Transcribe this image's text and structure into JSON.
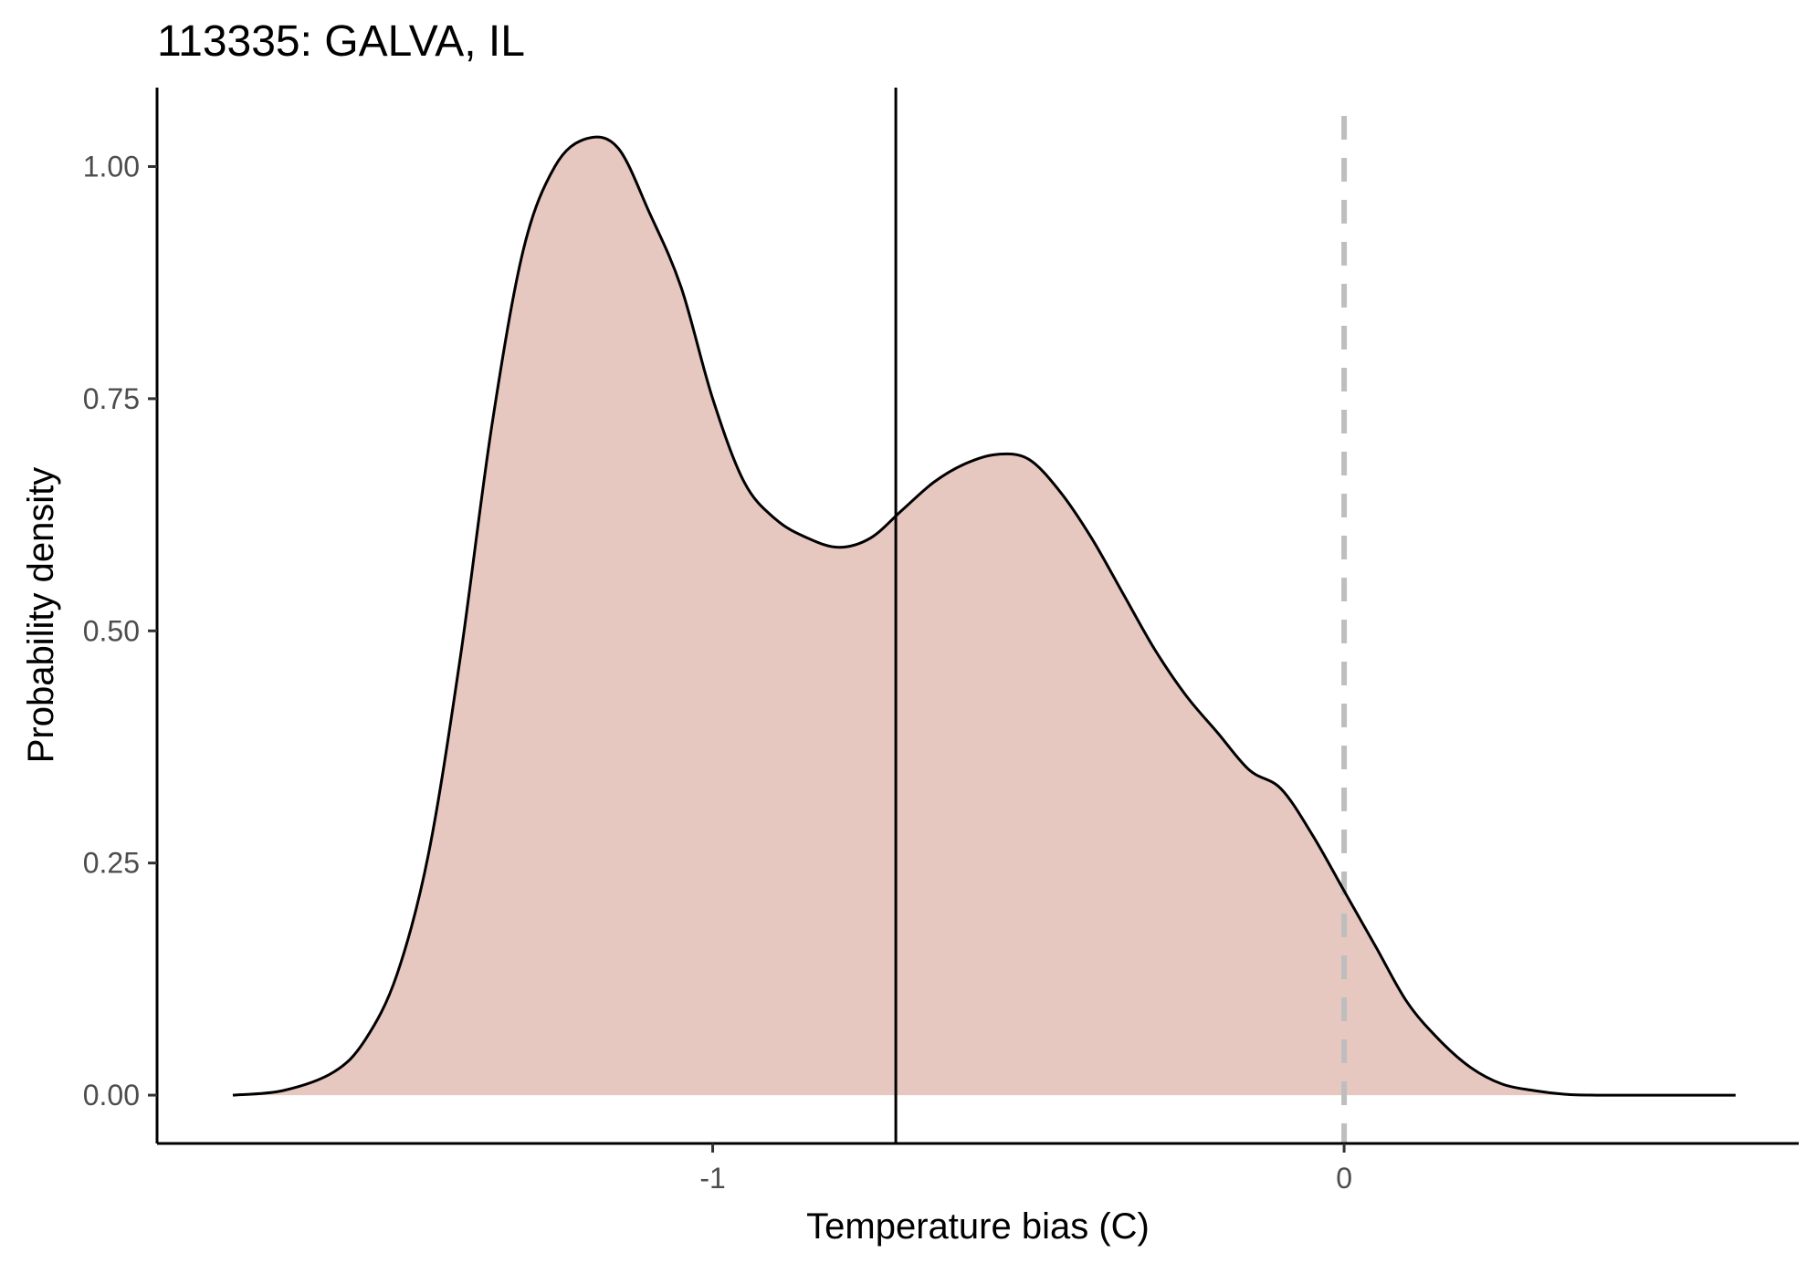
{
  "chart_data": {
    "type": "area",
    "title": "113335: GALVA, IL",
    "xlabel": "Temperature bias (C)",
    "ylabel": "Probability density",
    "xlim": [
      -1.88,
      0.72
    ],
    "ylim": [
      -0.052,
      1.085
    ],
    "x_ticks": [
      {
        "value": -1,
        "label": "-1"
      },
      {
        "value": 0,
        "label": "0"
      }
    ],
    "y_ticks": [
      {
        "value": 0.0,
        "label": "0.00"
      },
      {
        "value": 0.25,
        "label": "0.25"
      },
      {
        "value": 0.5,
        "label": "0.50"
      },
      {
        "value": 0.75,
        "label": "0.75"
      },
      {
        "value": 1.0,
        "label": "1.00"
      }
    ],
    "grid": false,
    "series": [
      {
        "kind": "density",
        "x": [
          -1.76,
          -1.68,
          -1.6,
          -1.55,
          -1.5,
          -1.45,
          -1.4,
          -1.35,
          -1.3,
          -1.25,
          -1.2,
          -1.15,
          -1.1,
          -1.05,
          -1.0,
          -0.95,
          -0.9,
          -0.85,
          -0.8,
          -0.75,
          -0.7,
          -0.65,
          -0.6,
          -0.55,
          -0.5,
          -0.45,
          -0.4,
          -0.35,
          -0.3,
          -0.25,
          -0.2,
          -0.15,
          -0.1,
          -0.05,
          0.0,
          0.05,
          0.1,
          0.15,
          0.2,
          0.25,
          0.3,
          0.35,
          0.4,
          0.45,
          0.5,
          0.55,
          0.62
        ],
        "y": [
          0.0,
          0.005,
          0.025,
          0.06,
          0.13,
          0.26,
          0.47,
          0.72,
          0.91,
          1.0,
          1.03,
          1.02,
          0.95,
          0.87,
          0.75,
          0.66,
          0.62,
          0.6,
          0.59,
          0.6,
          0.63,
          0.66,
          0.68,
          0.69,
          0.685,
          0.65,
          0.6,
          0.54,
          0.48,
          0.43,
          0.39,
          0.35,
          0.33,
          0.28,
          0.22,
          0.16,
          0.1,
          0.06,
          0.03,
          0.012,
          0.005,
          0.001,
          0.0,
          0.0,
          0.0,
          0.0,
          0.0
        ],
        "fill": "#e6c8c0",
        "line_color": "#000000"
      }
    ],
    "reference_lines": [
      {
        "axis": "x",
        "value": -0.71,
        "style": "solid",
        "color": "#000000"
      },
      {
        "axis": "x",
        "value": 0,
        "style": "dashed",
        "color": "#bebebe"
      }
    ]
  }
}
